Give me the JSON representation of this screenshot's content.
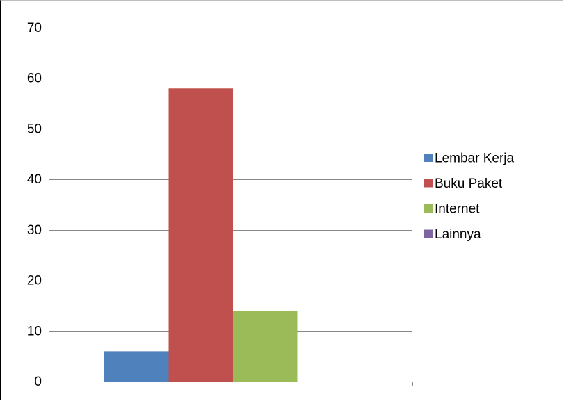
{
  "chart_data": {
    "type": "bar",
    "categories": [
      ""
    ],
    "series": [
      {
        "name": "Lembar Kerja",
        "values": [
          6
        ],
        "color": "#4F81BD"
      },
      {
        "name": "Buku Paket",
        "values": [
          58
        ],
        "color": "#C0504D"
      },
      {
        "name": "Internet",
        "values": [
          14
        ],
        "color": "#9BBB59"
      },
      {
        "name": "Lainnya",
        "values": [
          0
        ],
        "color": "#8064A2"
      }
    ],
    "title": "",
    "xlabel": "",
    "ylabel": "",
    "ylim": [
      0,
      70
    ],
    "yticks": [
      0,
      10,
      20,
      30,
      40,
      50,
      60,
      70
    ],
    "grid": true,
    "legend_position": "right"
  }
}
